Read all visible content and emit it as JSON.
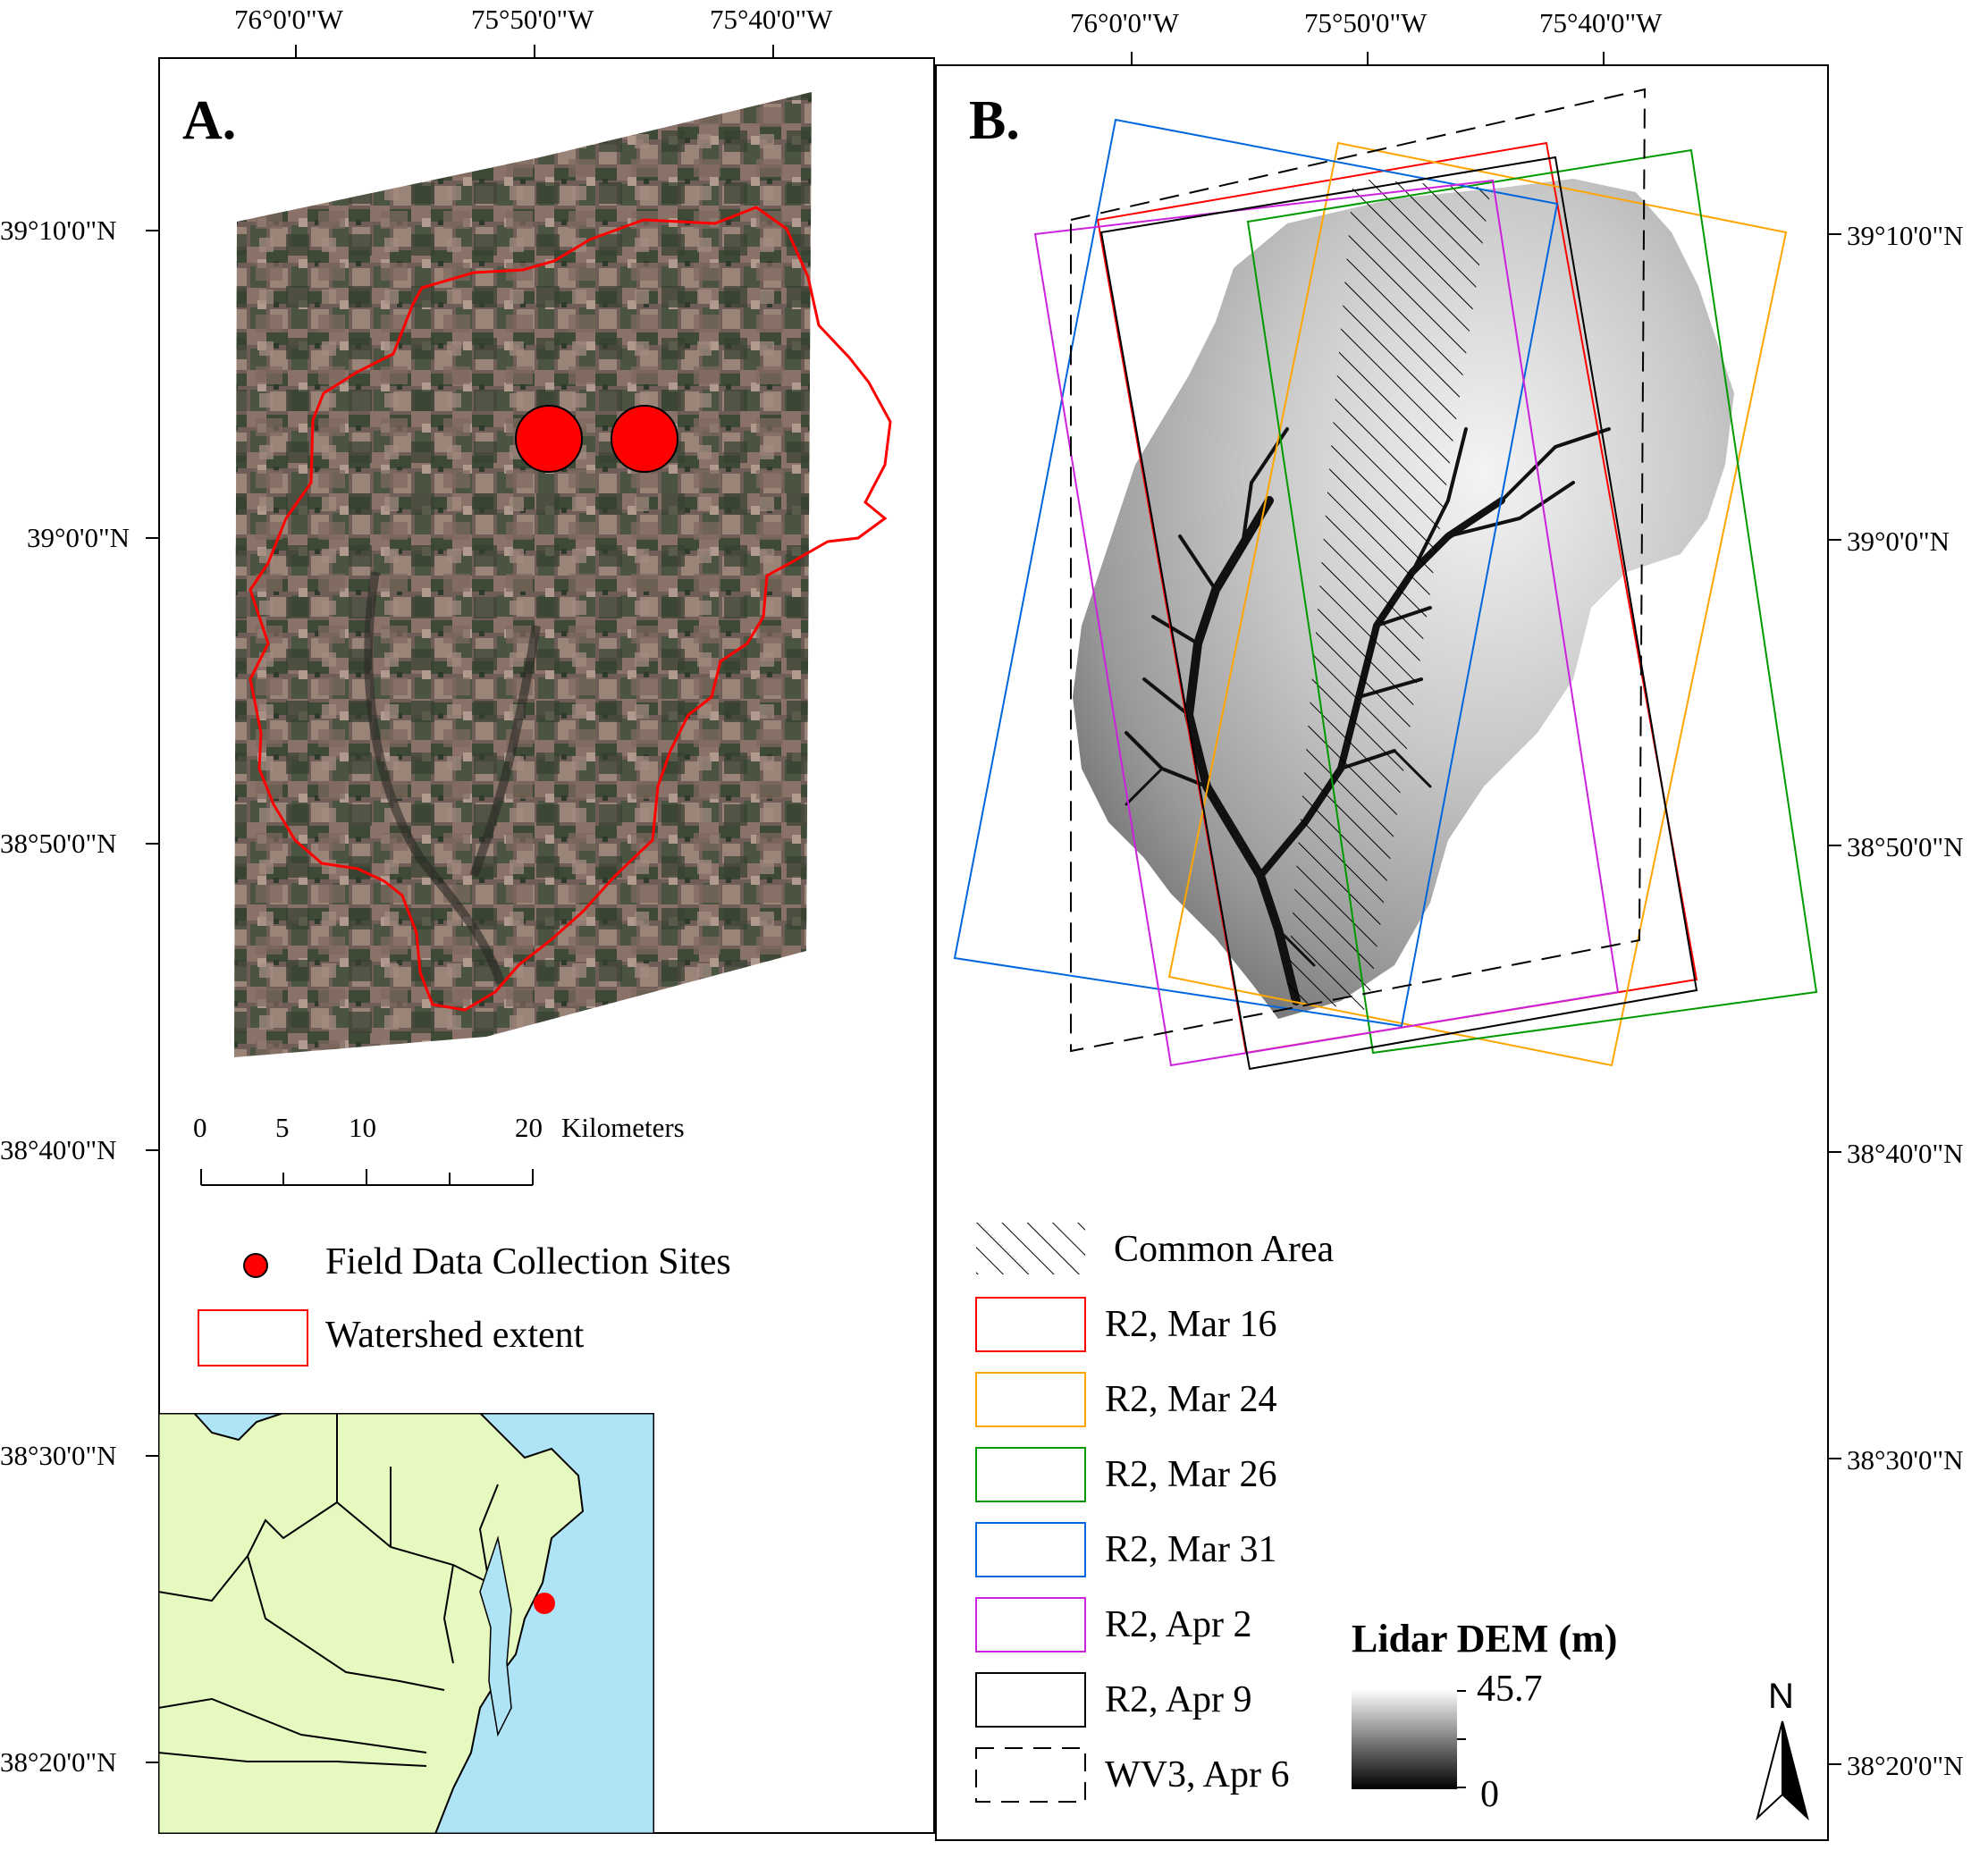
{
  "coords": {
    "lon_labels": [
      "76°0'0\"W",
      "75°50'0\"W",
      "75°40'0\"W"
    ],
    "lat_labels": [
      "39°10'0\"N",
      "39°0'0\"N",
      "38°50'0\"N",
      "38°40'0\"N",
      "38°30'0\"N",
      "38°20'0\"N"
    ]
  },
  "panel_a": {
    "letter": "A.",
    "scale_bar": {
      "ticks": [
        "0",
        "5",
        "10",
        "20"
      ],
      "unit": "Kilometers"
    },
    "legend": {
      "sites": "Field Data Collection Sites",
      "watershed": "Watershed extent"
    },
    "colors": {
      "watershed": "#ff0000",
      "sites": "#ff0000",
      "inset_land": "#e6fac0",
      "inset_water": "#aee4f6"
    }
  },
  "panel_b": {
    "letter": "B.",
    "legend": [
      {
        "label": "Common Area",
        "style": "hatch",
        "color": "#000000"
      },
      {
        "label": "R2, Mar 16",
        "style": "solid",
        "color": "#ff0000"
      },
      {
        "label": "R2, Mar 24",
        "style": "solid",
        "color": "#ffa500"
      },
      {
        "label": "R2, Mar 26",
        "style": "solid",
        "color": "#009900"
      },
      {
        "label": "R2, Mar 31",
        "style": "solid",
        "color": "#0066dd"
      },
      {
        "label": "R2, Apr 2",
        "style": "solid",
        "color": "#cc22dd"
      },
      {
        "label": "R2, Apr 9",
        "style": "solid",
        "color": "#000000"
      },
      {
        "label": "WV3, Apr 6",
        "style": "dashed",
        "color": "#000000"
      }
    ],
    "dem": {
      "title": "Lidar DEM (m)",
      "max": "45.7",
      "min": "0"
    },
    "north": "N"
  }
}
